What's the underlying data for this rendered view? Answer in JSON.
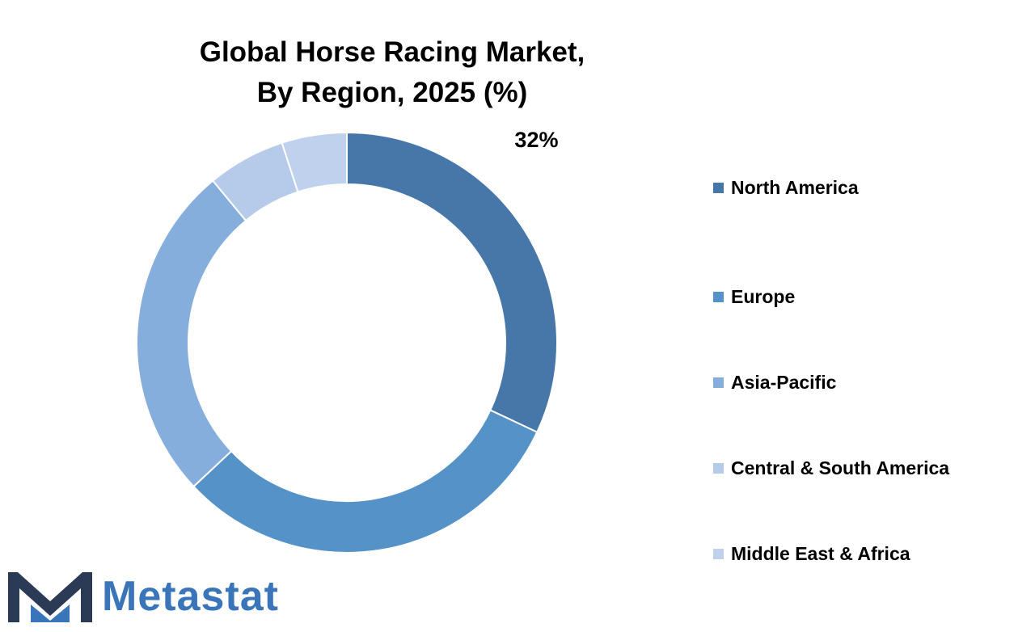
{
  "chart_data": {
    "type": "pie",
    "donut": true,
    "title_lines": [
      "Global Horse Racing Market,",
      "By Region, 2025 (%)"
    ],
    "categories": [
      "North America",
      "Europe",
      "Asia-Pacific",
      "Central & South America",
      "Middle East & Africa"
    ],
    "values": [
      32,
      31,
      26,
      6,
      5
    ],
    "colors": [
      "#4677a8",
      "#5592c8",
      "#86aedc",
      "#b5cbe9",
      "#bfd1ec"
    ],
    "data_labels": [
      {
        "category": "North America",
        "text": "32%"
      }
    ],
    "legend_position": "right"
  },
  "logo": {
    "text": "Metastat",
    "icon": "metastat-m-logo-icon",
    "mark_color": "#2b3a55",
    "text_color": "#3a75ba"
  }
}
